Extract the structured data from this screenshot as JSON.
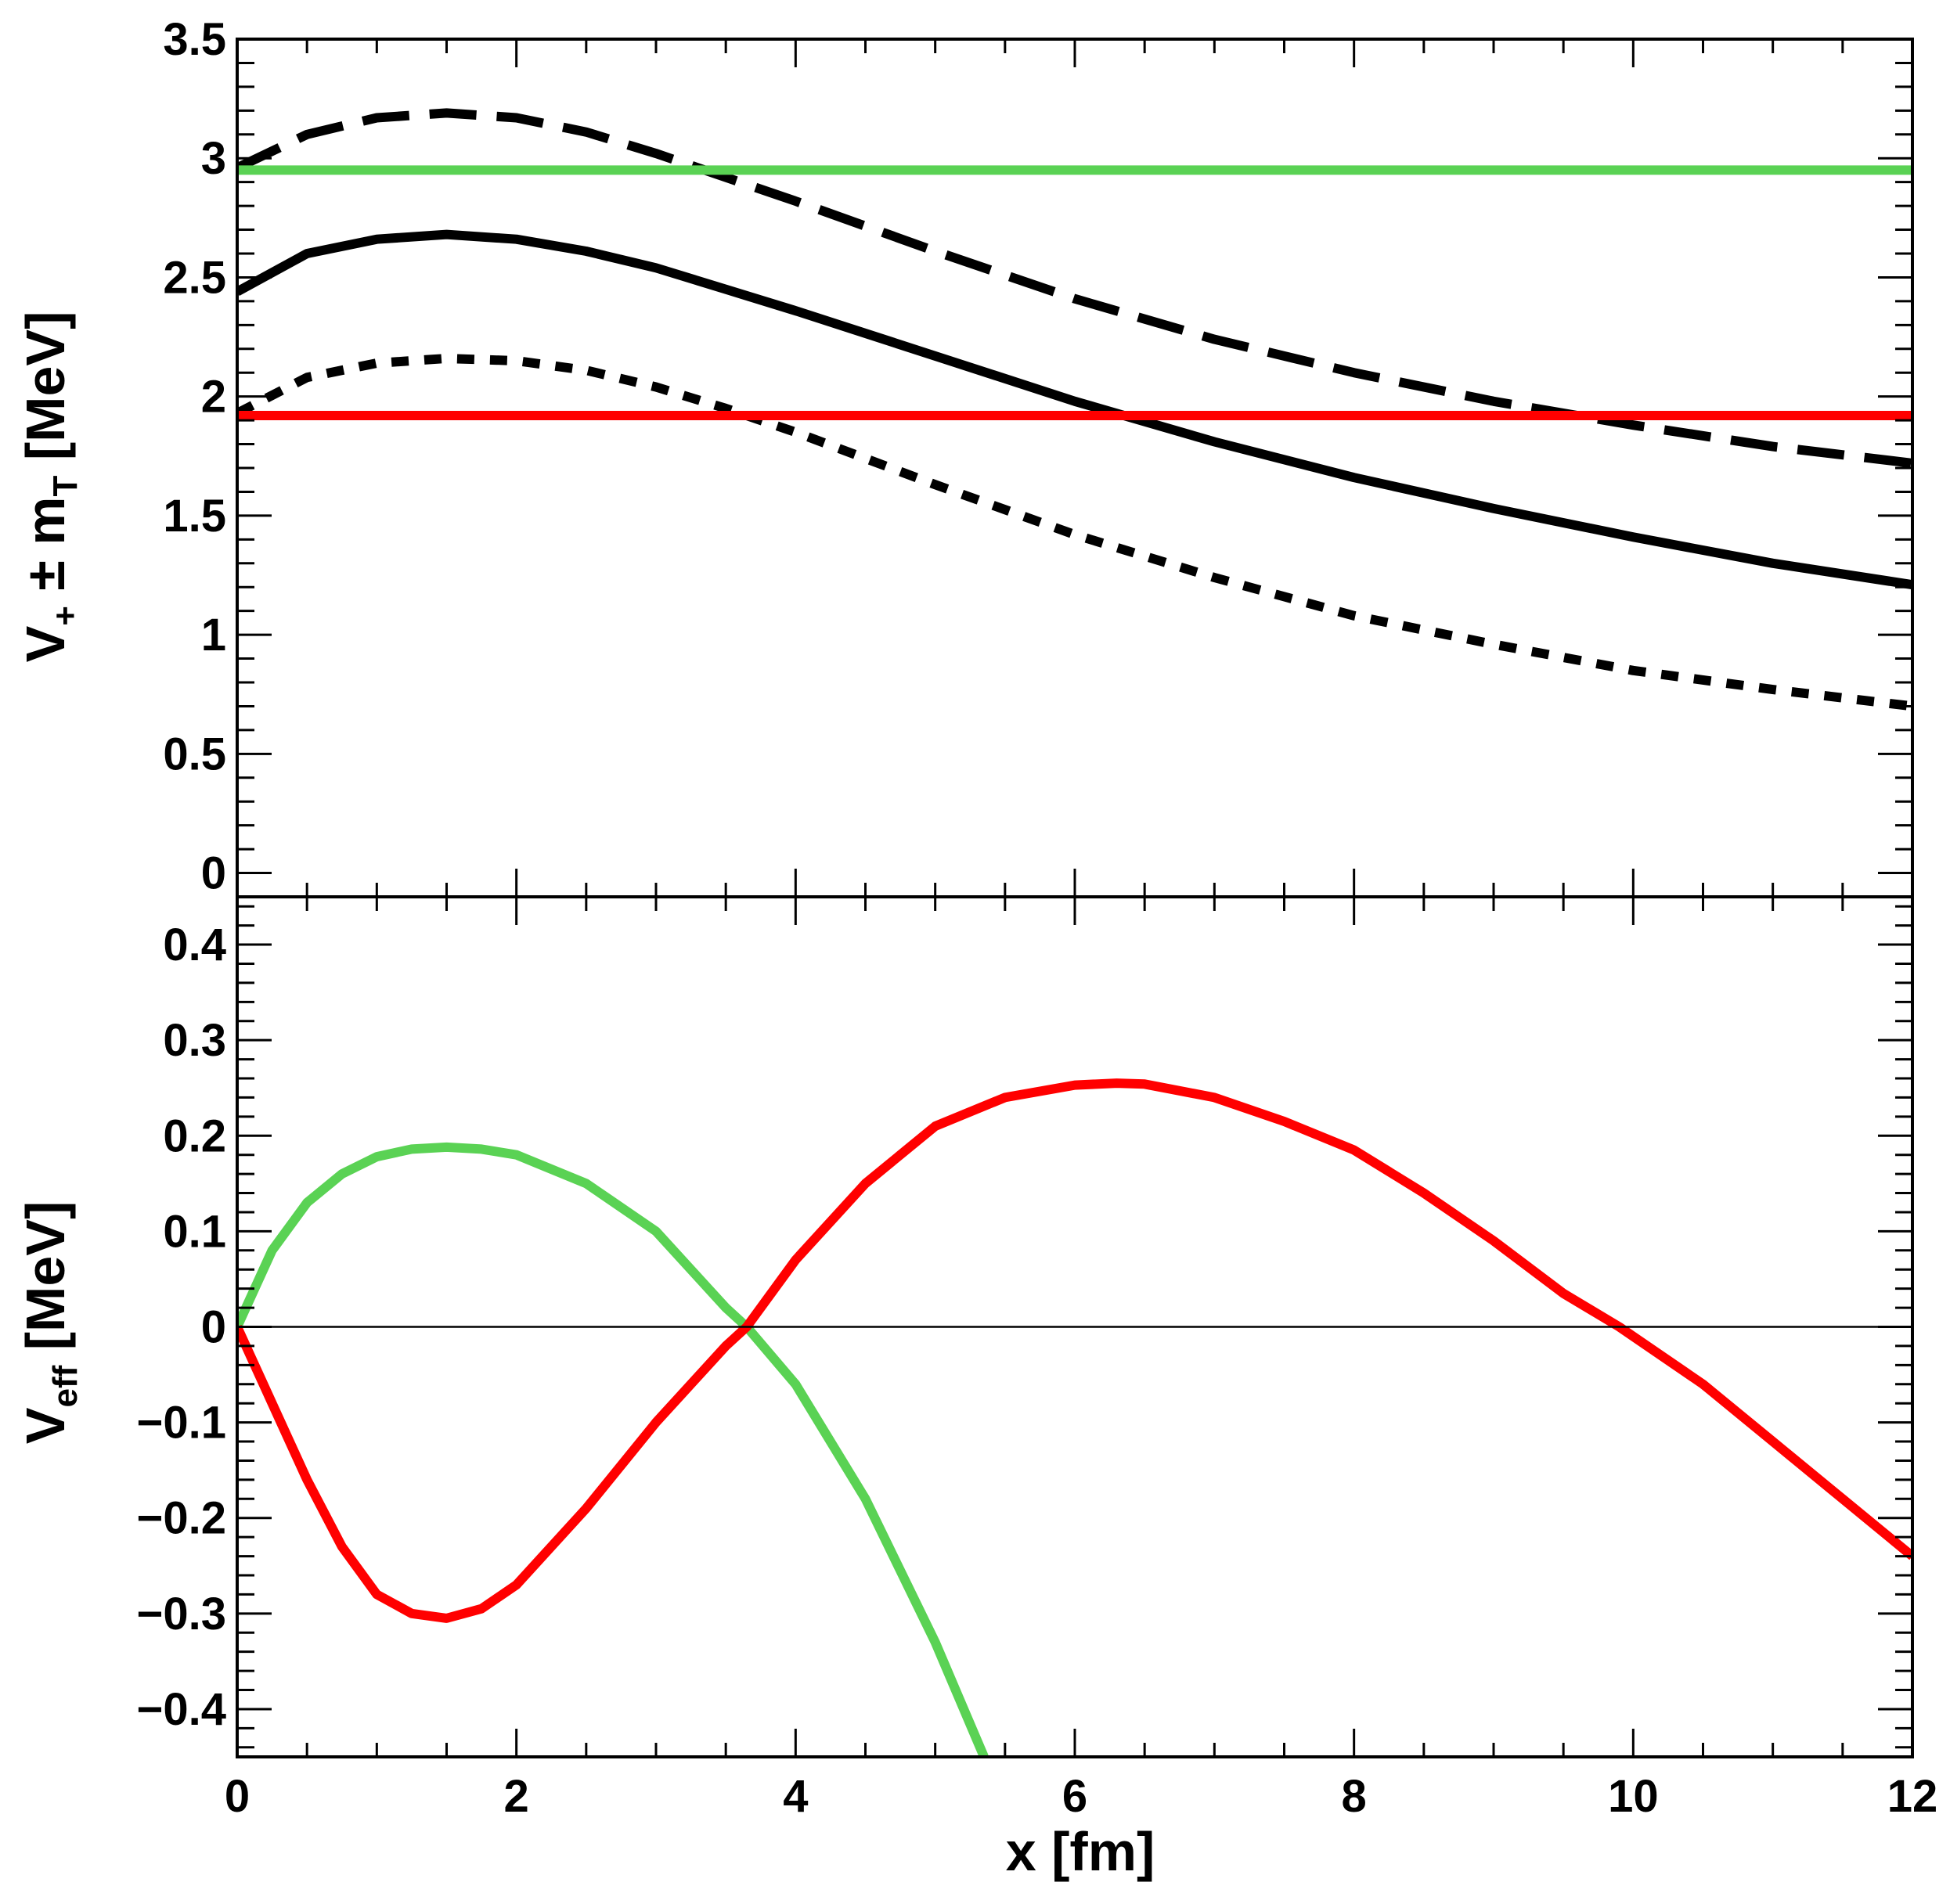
{
  "chart_data": [
    {
      "panel": "top",
      "type": "line",
      "title": "",
      "ylabel": {
        "main": "V",
        "sub": "+",
        "mid": " ± m",
        "sub2": "T",
        "unit": " [MeV]"
      },
      "xlabel": "",
      "xlim": [
        0,
        12
      ],
      "ylim": [
        -0.1,
        3.5
      ],
      "yticks": [
        0,
        0.5,
        1,
        1.5,
        2,
        2.5,
        3,
        3.5
      ],
      "ytick_labels": [
        "0",
        "0.5",
        "1",
        "1.5",
        "2",
        "2.5",
        "3",
        "3.5"
      ],
      "series": [
        {
          "name": "V+ + m_T",
          "style": "dashed",
          "color": "#000000",
          "x": [
            0,
            0.5,
            1,
            1.5,
            2,
            2.5,
            3,
            3.5,
            4,
            5,
            6,
            7,
            8,
            9,
            10,
            11,
            12
          ],
          "values": [
            2.96,
            3.1,
            3.17,
            3.19,
            3.17,
            3.11,
            3.02,
            2.92,
            2.82,
            2.61,
            2.41,
            2.24,
            2.1,
            1.98,
            1.88,
            1.79,
            1.72
          ]
        },
        {
          "name": "V+",
          "style": "solid",
          "color": "#000000",
          "x": [
            0,
            0.5,
            1,
            1.5,
            2,
            2.5,
            3,
            3.5,
            4,
            5,
            6,
            7,
            8,
            9,
            10,
            11,
            12
          ],
          "values": [
            2.44,
            2.6,
            2.66,
            2.68,
            2.66,
            2.61,
            2.54,
            2.45,
            2.36,
            2.17,
            1.98,
            1.81,
            1.66,
            1.53,
            1.41,
            1.3,
            1.21
          ]
        },
        {
          "name": "V+ - m_T",
          "style": "dotted",
          "color": "#000000",
          "x": [
            0,
            0.5,
            1,
            1.5,
            2,
            2.5,
            3,
            3.5,
            4,
            5,
            6,
            7,
            8,
            9,
            10,
            11,
            12
          ],
          "values": [
            1.93,
            2.08,
            2.14,
            2.16,
            2.15,
            2.11,
            2.04,
            1.95,
            1.85,
            1.63,
            1.42,
            1.24,
            1.08,
            0.96,
            0.85,
            0.77,
            0.7
          ]
        },
        {
          "name": "green level",
          "style": "solid",
          "color": "#5ad254",
          "x": [
            0,
            12
          ],
          "values": [
            2.95,
            2.95
          ]
        },
        {
          "name": "red level",
          "style": "solid",
          "color": "#ff0000",
          "x": [
            0,
            12
          ],
          "values": [
            1.92,
            1.92
          ]
        }
      ]
    },
    {
      "panel": "bottom",
      "type": "line",
      "title": "",
      "ylabel": {
        "main": "V",
        "sub": "eff",
        "unit": " [MeV]"
      },
      "xlabel": "x [fm]",
      "xlim": [
        0,
        12
      ],
      "ylim": [
        -0.45,
        0.45
      ],
      "xticks": [
        0,
        2,
        4,
        6,
        8,
        10,
        12
      ],
      "xtick_labels": [
        "0",
        "2",
        "4",
        "6",
        "8",
        "10",
        "12"
      ],
      "yticks": [
        -0.4,
        -0.3,
        -0.2,
        -0.1,
        0,
        0.1,
        0.2,
        0.3,
        0.4
      ],
      "ytick_labels": [
        "−0.4",
        "−0.3",
        "−0.2",
        "−0.1",
        "0",
        "0.1",
        "0.2",
        "0.3",
        "0.4"
      ],
      "series": [
        {
          "name": "green V_eff",
          "style": "solid",
          "color": "#5ad254",
          "x": [
            0,
            0.25,
            0.5,
            0.75,
            1,
            1.25,
            1.5,
            1.75,
            2,
            2.5,
            3,
            3.5,
            3.65,
            4,
            4.5,
            5,
            5.35
          ],
          "values": [
            0,
            0.08,
            0.13,
            0.16,
            0.178,
            0.186,
            0.188,
            0.186,
            0.18,
            0.15,
            0.1,
            0.02,
            0,
            -0.06,
            -0.18,
            -0.33,
            -0.45
          ]
        },
        {
          "name": "red V_eff",
          "style": "solid",
          "color": "#ff0000",
          "x": [
            0,
            0.25,
            0.5,
            0.75,
            1,
            1.25,
            1.5,
            1.75,
            2,
            2.5,
            3,
            3.5,
            3.65,
            4,
            4.5,
            5,
            5.5,
            6,
            6.3,
            6.5,
            7,
            7.5,
            8,
            8.5,
            9,
            9.5,
            9.9,
            10.5,
            11,
            11.5,
            12
          ],
          "values": [
            0,
            -0.08,
            -0.16,
            -0.23,
            -0.28,
            -0.3,
            -0.305,
            -0.295,
            -0.27,
            -0.19,
            -0.1,
            -0.02,
            0,
            0.07,
            0.15,
            0.21,
            0.24,
            0.253,
            0.255,
            0.254,
            0.24,
            0.215,
            0.185,
            0.14,
            0.09,
            0.035,
            0,
            -0.06,
            -0.12,
            -0.18,
            -0.24
          ]
        },
        {
          "name": "zero line",
          "style": "thin",
          "color": "#000000",
          "x": [
            0,
            12
          ],
          "values": [
            0,
            0
          ]
        }
      ]
    }
  ]
}
